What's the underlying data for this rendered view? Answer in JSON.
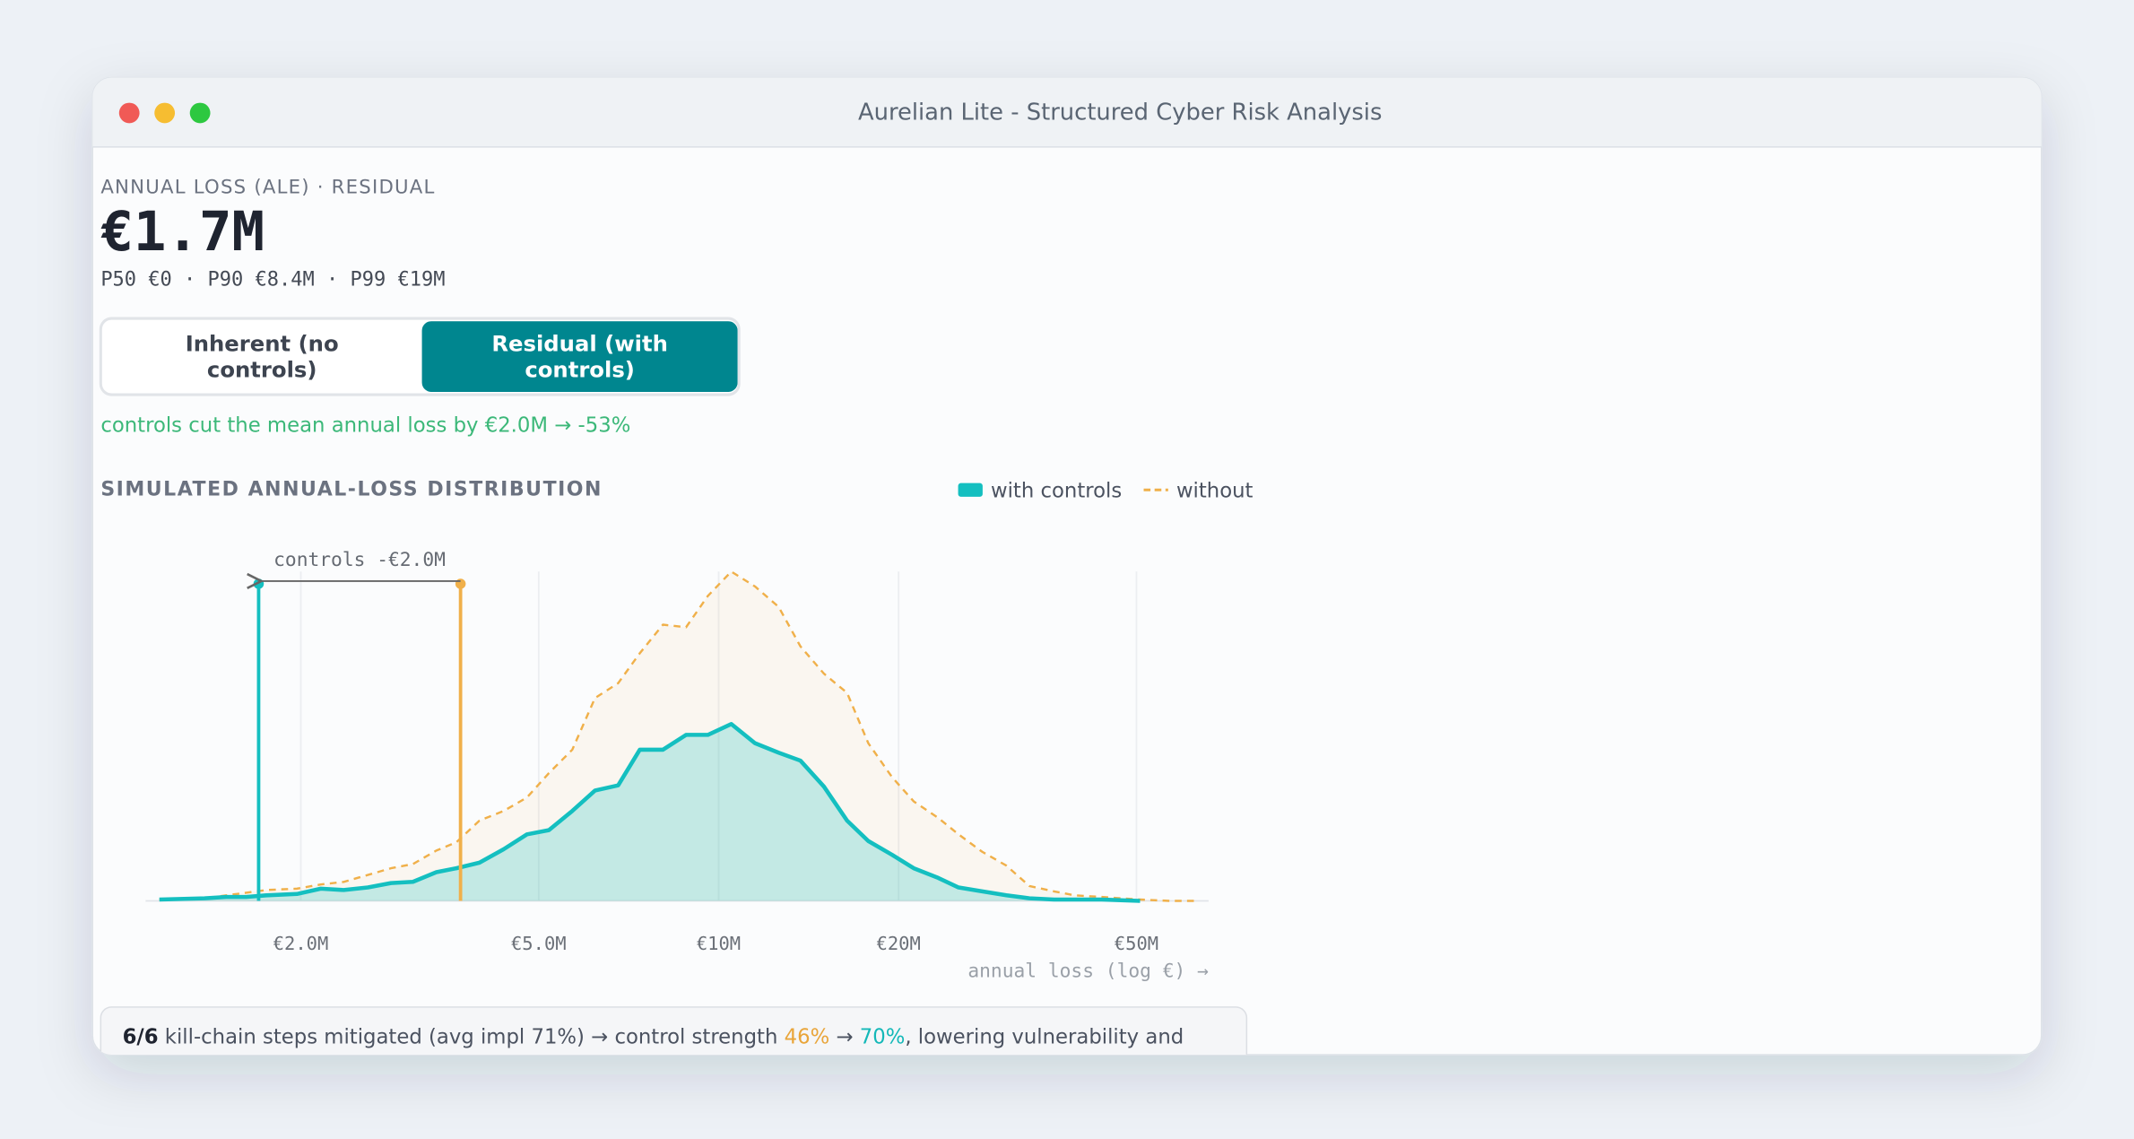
{
  "window": {
    "title": "Aurelian Lite - Structured Cyber Risk Analysis"
  },
  "header": {
    "label": "ANNUAL LOSS (ALE) · RESIDUAL",
    "value": "€1.7M",
    "percentiles": "P50 €0 · P90 €8.4M · P99 €19M"
  },
  "toggle": {
    "options": [
      "Inherent (no controls)",
      "Residual (with controls)"
    ],
    "selected": 1
  },
  "savings_note": "controls cut the mean annual loss by €2.0M → -53%",
  "chart_data": {
    "type": "area",
    "title": "SIMULATED ANNUAL-LOSS DISTRIBUTION",
    "x_label": "annual loss (log €) →",
    "xscale": "log",
    "grid": true,
    "x": [
      1160000,
      1380000,
      1500000,
      1620000,
      1750000,
      1970000,
      2160000,
      2360000,
      2590000,
      2830000,
      3080000,
      3370000,
      3640000,
      3980000,
      4370000,
      4780000,
      5200000,
      5690000,
      6210000,
      6790000,
      7380000,
      8070000,
      8820000,
      9590000,
      10500000,
      11500000,
      12600000,
      13700000,
      15000000,
      16400000,
      17800000,
      19500000,
      21200000,
      23300000,
      25200000,
      27600000,
      30300000,
      33100000,
      36400000,
      39400000,
      43700000,
      50700000,
      56900000,
      63100000
    ],
    "series": [
      {
        "name": "with controls",
        "color": "#14bfc0",
        "dashed": false,
        "values": [
          0.004,
          0.008,
          0.012,
          0.012,
          0.017,
          0.021,
          0.037,
          0.033,
          0.041,
          0.054,
          0.058,
          0.087,
          0.099,
          0.116,
          0.157,
          0.202,
          0.215,
          0.273,
          0.335,
          0.351,
          0.459,
          0.459,
          0.504,
          0.504,
          0.537,
          0.479,
          0.45,
          0.426,
          0.347,
          0.244,
          0.182,
          0.14,
          0.099,
          0.07,
          0.041,
          0.029,
          0.017,
          0.008,
          0.004,
          0.004,
          0.004,
          0,
          null,
          null
        ]
      },
      {
        "name": "without",
        "color": "#f0b04a",
        "dashed": true,
        "values": [
          0.004,
          0.008,
          0.017,
          0.025,
          0.033,
          0.037,
          0.05,
          0.058,
          0.079,
          0.099,
          0.112,
          0.153,
          0.178,
          0.244,
          0.273,
          0.314,
          0.388,
          0.459,
          0.616,
          0.661,
          0.752,
          0.839,
          0.831,
          0.926,
          1.0,
          0.955,
          0.893,
          0.773,
          0.69,
          0.632,
          0.479,
          0.376,
          0.302,
          0.252,
          0.202,
          0.149,
          0.107,
          0.045,
          0.029,
          0.017,
          0.012,
          0.004,
          0,
          0
        ]
      }
    ],
    "xlim": [
      1100000,
      66000000
    ],
    "xticks": [
      {
        "value": 2000000,
        "label": "€2.0M"
      },
      {
        "value": 5000000,
        "label": "€5.0M"
      },
      {
        "value": 10000000,
        "label": "€10M"
      },
      {
        "value": 20000000,
        "label": "€20M"
      },
      {
        "value": 50000000,
        "label": "€50M"
      }
    ],
    "ylim": [
      0,
      1
    ],
    "mean_lines": [
      {
        "value": 1700000,
        "color": "#14bfc0"
      },
      {
        "value": 3700000,
        "color": "#f0b04a"
      }
    ],
    "annotation": "controls -€2.0M"
  },
  "footer_note": {
    "parts": [
      "6/6",
      " kill-chain steps mitigated (avg impl 71%) → control strength ",
      "46%",
      " → ",
      "70%",
      ", lowering vulnerability and"
    ]
  }
}
